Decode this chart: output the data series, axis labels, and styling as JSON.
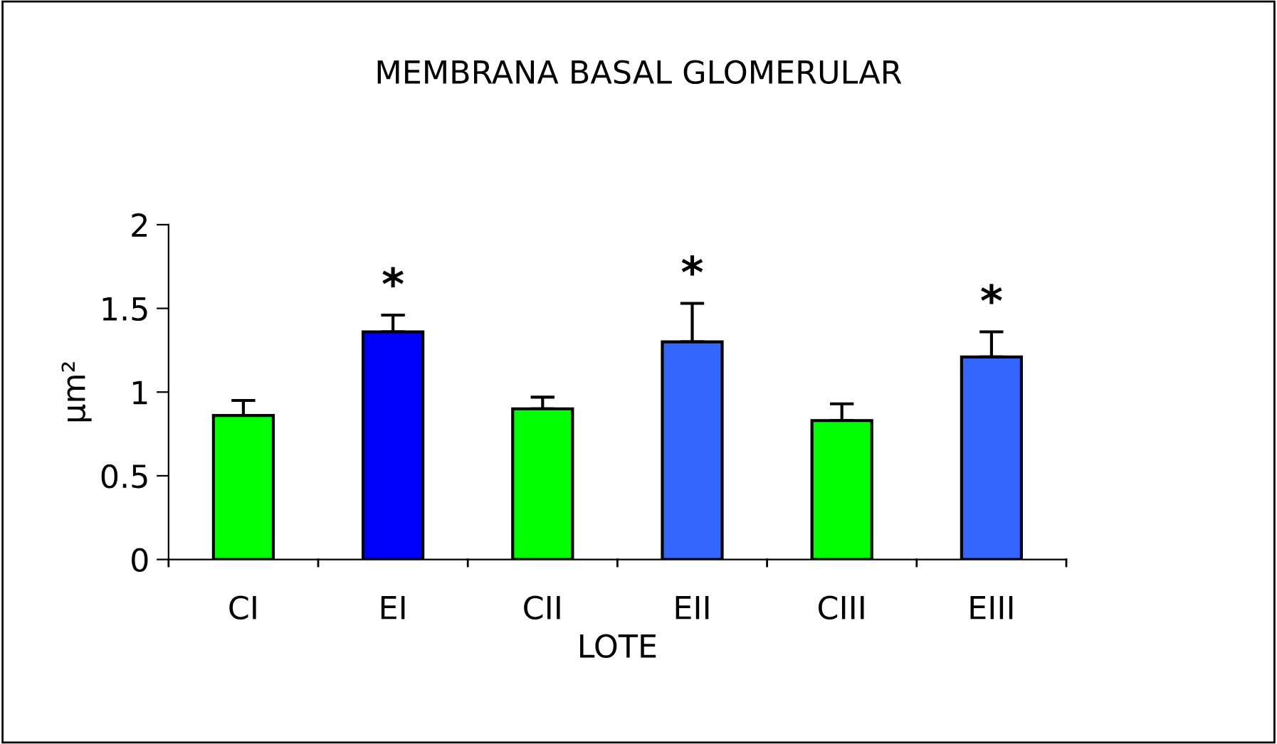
{
  "chart_data": {
    "type": "bar",
    "title": "MEMBRANA BASAL GLOMERULAR",
    "xlabel": "LOTE",
    "ylabel": "µm²",
    "categories": [
      "CI",
      "EI",
      "CII",
      "EII",
      "CIII",
      "EIII"
    ],
    "values": [
      0.86,
      1.36,
      0.9,
      1.3,
      0.83,
      1.21
    ],
    "colors": [
      "#00ff00",
      "#0000ff",
      "#00ff00",
      "#3366ff",
      "#00ff00",
      "#3366ff"
    ],
    "errors": [
      [
        0.86,
        0.95
      ],
      [
        1.36,
        1.46
      ],
      [
        0.9,
        0.97
      ],
      [
        1.3,
        1.53
      ],
      [
        0.83,
        0.93
      ],
      [
        1.21,
        1.36
      ]
    ],
    "ylim": [
      0,
      2
    ],
    "yticks": [
      0,
      0.5,
      1,
      1.5,
      2
    ],
    "grid": false,
    "legend": false,
    "value_labels": [
      null,
      "*",
      null,
      "*",
      null,
      "*"
    ]
  }
}
